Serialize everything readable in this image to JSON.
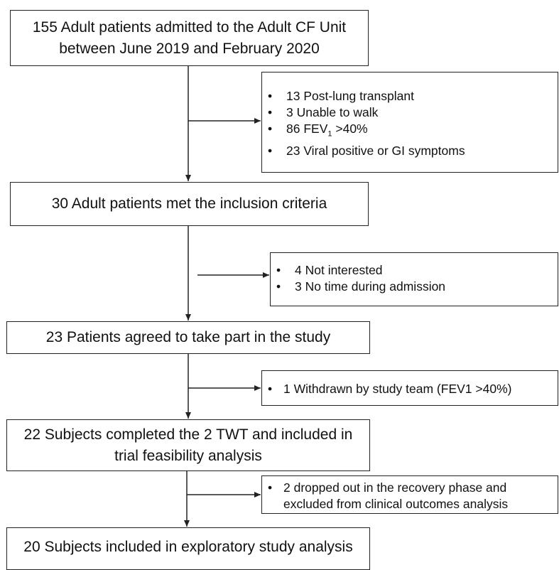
{
  "boxes": {
    "b1": {
      "lines": [
        "155 Adult patients admitted to the Adult CF Unit",
        "between June 2019 and February 2020"
      ]
    },
    "b2": {
      "lines": [
        "30 Adult patients met the inclusion criteria"
      ]
    },
    "b3": {
      "lines": [
        "23 Patients agreed to take part in the study"
      ]
    },
    "b4": {
      "lines": [
        "22 Subjects completed the 2 TWT and included in",
        "trial feasibility analysis"
      ]
    },
    "b5": {
      "lines": [
        "20 Subjects included in exploratory study analysis"
      ]
    }
  },
  "exclusions": {
    "e1": {
      "items": [
        {
          "text": "13 Post-lung transplant"
        },
        {
          "text": "3 Unable to walk"
        },
        {
          "text": "86 FEV",
          "sub": "1",
          "after": " >40%"
        },
        {
          "text": "23 Viral positive or GI symptoms"
        }
      ]
    },
    "e2": {
      "items": [
        {
          "text": "4 Not interested"
        },
        {
          "text": "3 No time during admission"
        }
      ]
    },
    "e3": {
      "items": [
        {
          "text": "1 Withdrawn by study team (FEV1 >40%)"
        }
      ]
    },
    "e4": {
      "items": [
        {
          "text": "2  dropped out in the recovery phase and"
        },
        {
          "text": "excluded from clinical outcomes analysis"
        }
      ]
    }
  },
  "bullet": "•"
}
